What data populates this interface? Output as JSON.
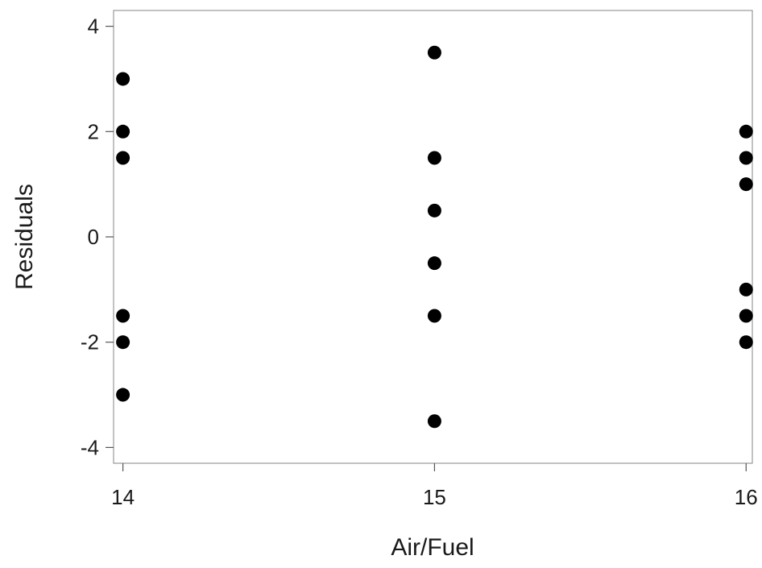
{
  "chart_data": {
    "type": "scatter",
    "title": "",
    "xlabel": "Air/Fuel",
    "ylabel": "Residuals",
    "xlim": [
      13.97,
      16.02
    ],
    "ylim": [
      -4.3,
      4.3
    ],
    "xticks": [
      14,
      15,
      16
    ],
    "yticks": [
      -4,
      -2,
      0,
      2,
      4
    ],
    "grid": false,
    "legend": "none",
    "marker_color": "#000000",
    "points": [
      {
        "x": 14,
        "y": 3
      },
      {
        "x": 14,
        "y": 2
      },
      {
        "x": 14,
        "y": 1.5
      },
      {
        "x": 14,
        "y": -1.5
      },
      {
        "x": 14,
        "y": -2
      },
      {
        "x": 14,
        "y": -3
      },
      {
        "x": 15,
        "y": 3.5
      },
      {
        "x": 15,
        "y": 1.5
      },
      {
        "x": 15,
        "y": 0.5
      },
      {
        "x": 15,
        "y": -0.5
      },
      {
        "x": 15,
        "y": -1.5
      },
      {
        "x": 15,
        "y": -3.5
      },
      {
        "x": 16,
        "y": 2
      },
      {
        "x": 16,
        "y": 1.5
      },
      {
        "x": 16,
        "y": 1
      },
      {
        "x": 16,
        "y": -1
      },
      {
        "x": 16,
        "y": -1.5
      },
      {
        "x": 16,
        "y": -2
      }
    ]
  }
}
